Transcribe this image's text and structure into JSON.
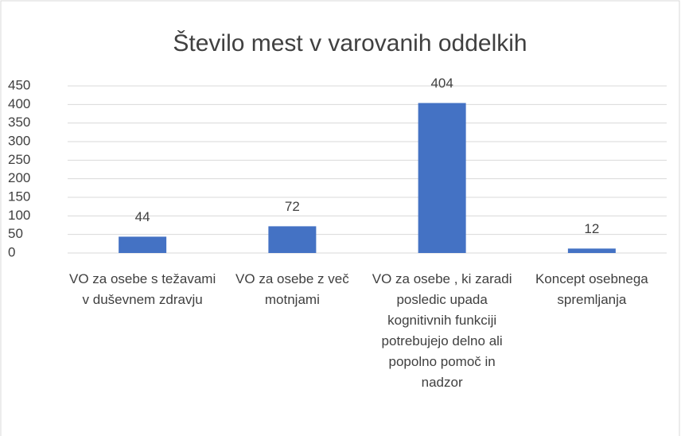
{
  "chart_data": {
    "type": "bar",
    "title": "Število mest v varovanih oddelkih",
    "categories": [
      "VO za osebe s težavami v duševnem zdravju",
      "VO za osebe z več motnjami",
      "VO za osebe , ki zaradi posledic upada kognitivnih funkciji potrebujejo delno ali popolno pomoč in nadzor",
      "Koncept osebnega spremljanja"
    ],
    "values": [
      44,
      72,
      404,
      12
    ],
    "color": "#4472c4",
    "ylim": [
      0,
      450
    ],
    "yticks": [
      0,
      50,
      100,
      150,
      200,
      250,
      300,
      350,
      400,
      450
    ],
    "grid": true
  }
}
